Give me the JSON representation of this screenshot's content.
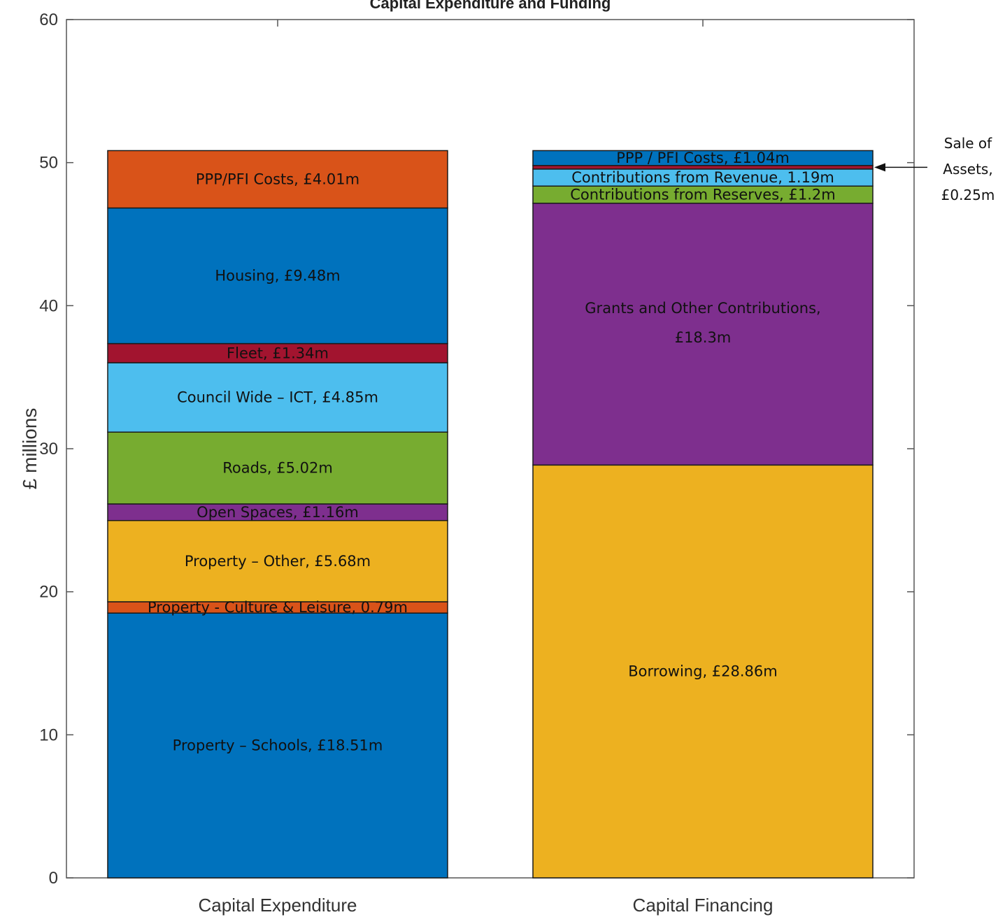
{
  "chart_data": {
    "type": "bar",
    "stacked": true,
    "title": "Capital Expenditure and Funding",
    "ylabel": "£ millions",
    "xlabel": "",
    "ylim": [
      0,
      60
    ],
    "yticks": [
      0,
      10,
      20,
      30,
      40,
      50,
      60
    ],
    "categories": [
      "Capital Expenditure",
      "Capital Financing"
    ],
    "grid": false,
    "stacks": [
      {
        "category": "Capital Expenditure",
        "segments": [
          {
            "label": "Property – Schools, £18.51m",
            "value": 18.51,
            "color": "#0072bd"
          },
          {
            "label": "Property - Culture & Leisure, 0.79m",
            "value": 0.79,
            "color": "#d95319"
          },
          {
            "label": "Property – Other, £5.68m",
            "value": 5.68,
            "color": "#edb120"
          },
          {
            "label": "Open Spaces, £1.16m",
            "value": 1.16,
            "color": "#7e2f8e"
          },
          {
            "label": "Roads, £5.02m",
            "value": 5.02,
            "color": "#77ac30"
          },
          {
            "label": "Council Wide – ICT, £4.85m",
            "value": 4.85,
            "color": "#4dbeee"
          },
          {
            "label": "Fleet, £1.34m",
            "value": 1.34,
            "color": "#a2142f"
          },
          {
            "label": "Housing, £9.48m",
            "value": 9.48,
            "color": "#0072bd"
          },
          {
            "label": "PPP/PFI Costs, £4.01m",
            "value": 4.01,
            "color": "#d95319"
          }
        ]
      },
      {
        "category": "Capital Financing",
        "segments": [
          {
            "label": "Borrowing, £28.86m",
            "value": 28.86,
            "color": "#edb120"
          },
          {
            "label": "Grants and Other Contributions,",
            "label_line2": "£18.3m",
            "value": 18.3,
            "color": "#7e2f8e"
          },
          {
            "label": "Contributions from Reserves, £1.2m",
            "value": 1.2,
            "color": "#77ac30"
          },
          {
            "label": "Contributions from Revenue, 1.19m",
            "value": 1.19,
            "color": "#4dbeee"
          },
          {
            "label": "",
            "value": 0.25,
            "color": "#a2142f"
          },
          {
            "label": "PPP  / PFI Costs, £1.04m",
            "value": 1.04,
            "color": "#0072bd"
          }
        ]
      }
    ],
    "annotation": {
      "lines": [
        "Sale of",
        "Assets,",
        "£0.25m"
      ]
    }
  }
}
